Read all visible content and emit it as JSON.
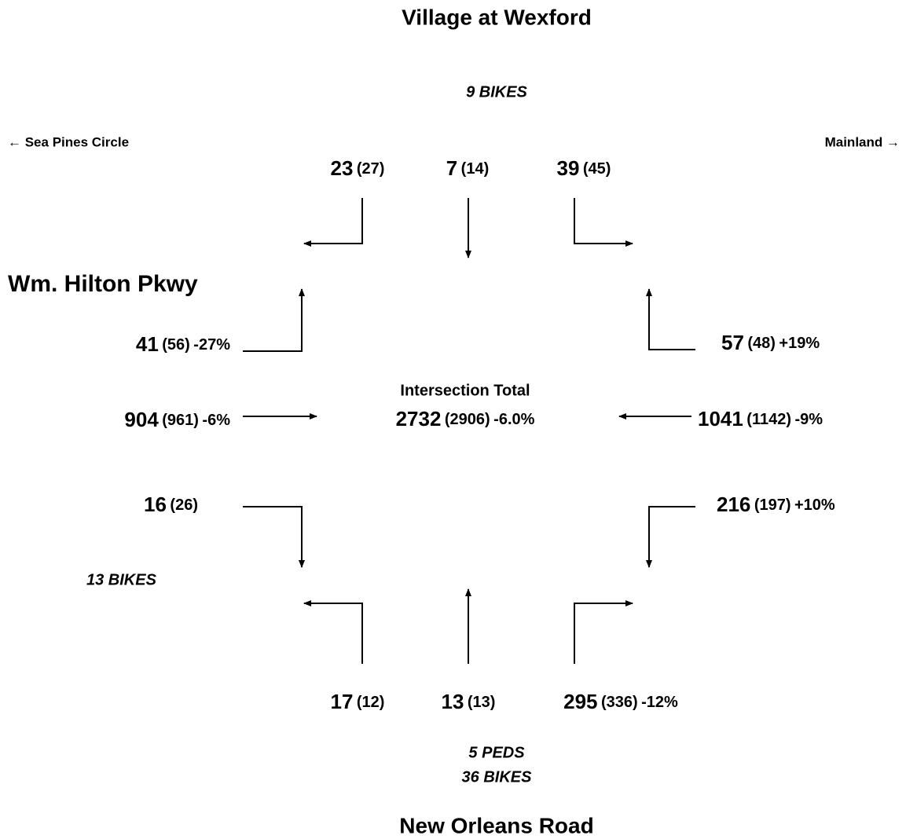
{
  "title": "Village at Wexford",
  "north_note": "9 BIKES",
  "west_direction": "← Sea Pines Circle",
  "east_direction": "Mainland →",
  "side_street": "Wm. Hilton Pkwy",
  "west_note": "13 BIKES",
  "total": {
    "label": "Intersection Total",
    "count": "2732",
    "prior": "(2906)",
    "change": "-6.0%"
  },
  "movements": [
    {
      "count": "23",
      "prior": "(27)"
    },
    {
      "count": "7",
      "prior": "(14)"
    },
    {
      "count": "39",
      "prior": "(45)"
    },
    {
      "count": "41",
      "prior": "(56)",
      "change": "-27%"
    },
    {
      "count": "904",
      "prior": "(961)",
      "change": "-6%"
    },
    {
      "count": "16",
      "prior": "(26)"
    },
    {
      "count": "57",
      "prior": "(48)",
      "change": "+19%"
    },
    {
      "count": "1041",
      "prior": "(1142)",
      "change": "-9%"
    },
    {
      "count": "216",
      "prior": "(197)",
      "change": "+10%"
    },
    {
      "count": "17",
      "prior": "(12)"
    },
    {
      "count": "13",
      "prior": "(13)"
    },
    {
      "count": "295",
      "prior": "(336)",
      "change": "-12%"
    }
  ],
  "south_notes": [
    "5 PEDS",
    "36 BIKES"
  ],
  "bottom_title": "New Orleans Road"
}
